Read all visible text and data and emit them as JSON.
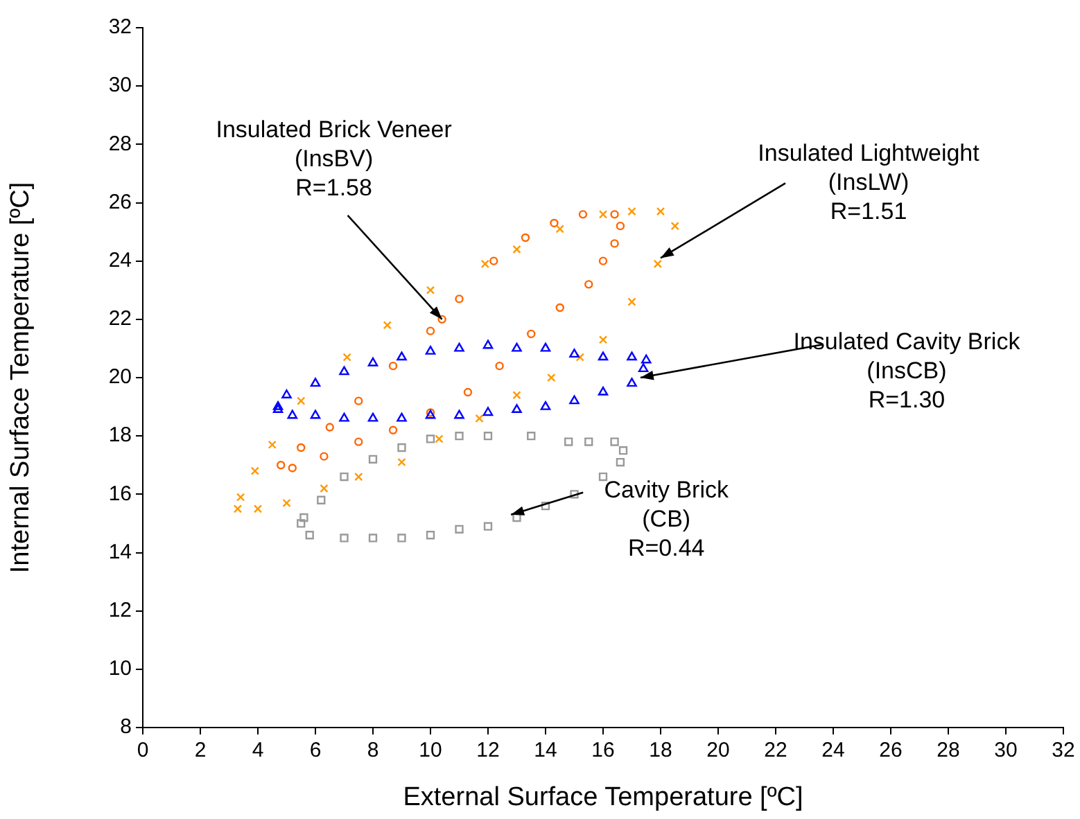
{
  "chart_data": {
    "type": "scatter",
    "xlabel": "External Surface Temperature [ºC]",
    "ylabel": "Internal Surface Temperature [ºC]",
    "xlim": [
      0,
      32
    ],
    "xticks": [
      0,
      2,
      4,
      6,
      8,
      10,
      12,
      14,
      16,
      18,
      20,
      22,
      24,
      26,
      28,
      30,
      32
    ],
    "ylim": [
      8,
      32
    ],
    "yticks": [
      8,
      10,
      12,
      14,
      16,
      18,
      20,
      22,
      24,
      26,
      28,
      30,
      32
    ],
    "grid": false,
    "legend": false,
    "series": [
      {
        "color": "#999999",
        "marker": "square",
        "x": [
          5.5,
          5.8,
          7,
          8,
          9,
          10,
          11,
          12,
          13,
          14,
          15,
          16,
          16.6,
          16.7,
          16.4,
          15.5,
          14.8,
          13.5,
          12,
          11,
          10,
          9,
          8,
          7,
          6.2,
          5.6
        ],
        "values": [
          15.0,
          14.6,
          14.5,
          14.5,
          14.5,
          14.6,
          14.8,
          14.9,
          15.2,
          15.6,
          16.0,
          16.6,
          17.1,
          17.5,
          17.8,
          17.8,
          17.8,
          18.0,
          18.0,
          18.0,
          17.9,
          17.6,
          17.2,
          16.6,
          15.8,
          15.2
        ]
      },
      {
        "color": "#0000ff",
        "marker": "triangle",
        "x": [
          4.7,
          5.2,
          6,
          7,
          8,
          9,
          10,
          11,
          12,
          13,
          14,
          15,
          16,
          17,
          17.4,
          17.5,
          17,
          16,
          15,
          14,
          13,
          12,
          11,
          10,
          9,
          8,
          7,
          6,
          5,
          4.7
        ],
        "values": [
          18.9,
          18.7,
          18.7,
          18.6,
          18.6,
          18.6,
          18.7,
          18.7,
          18.8,
          18.9,
          19.0,
          19.2,
          19.5,
          19.8,
          20.3,
          20.6,
          20.7,
          20.7,
          20.8,
          21.0,
          21.0,
          21.1,
          21.0,
          20.9,
          20.7,
          20.5,
          20.2,
          19.8,
          19.4,
          19.0
        ]
      },
      {
        "color": "#ff6600",
        "marker": "circle",
        "x": [
          4.8,
          5.5,
          6.5,
          7.5,
          8.7,
          10,
          10.4,
          11,
          12.2,
          13.3,
          14.3,
          15.3,
          16.4,
          16.6,
          16.4,
          16,
          15.5,
          14.5,
          13.5,
          12.4,
          11.3,
          10,
          8.7,
          7.5,
          6.3,
          5.2
        ],
        "values": [
          17.0,
          17.6,
          18.3,
          19.2,
          20.4,
          21.6,
          22.0,
          22.7,
          24.0,
          24.8,
          25.3,
          25.6,
          25.6,
          25.2,
          24.6,
          24.0,
          23.2,
          22.4,
          21.5,
          20.4,
          19.5,
          18.8,
          18.2,
          17.8,
          17.3,
          16.9
        ]
      },
      {
        "color": "#ff9900",
        "marker": "cross",
        "x": [
          3.3,
          4,
          5,
          6.3,
          7.5,
          9,
          10.3,
          11.7,
          13,
          14.2,
          15.2,
          16,
          17,
          17.9,
          18.5,
          18,
          17,
          16,
          14.5,
          13,
          11.9,
          10,
          8.5,
          7.1,
          5.5,
          4.5,
          3.9,
          3.4
        ],
        "values": [
          15.5,
          15.5,
          15.7,
          16.2,
          16.6,
          17.1,
          17.9,
          18.6,
          19.4,
          20.0,
          20.7,
          21.3,
          22.6,
          23.9,
          25.2,
          25.7,
          25.7,
          25.6,
          25.1,
          24.4,
          23.9,
          23.0,
          21.8,
          20.7,
          19.2,
          17.7,
          16.8,
          15.9
        ]
      }
    ],
    "annotations": [
      {
        "text": "Insulated Brick Veneer\n(InsBV)\nR=1.58",
        "x": 10.4,
        "y": 22.0
      },
      {
        "text": "Insulated Lightweight\n(InsLW)\nR=1.51",
        "x": 18.0,
        "y": 24.1
      },
      {
        "text": "Insulated Cavity Brick\n(InsCB)\nR=1.30",
        "x": 17.3,
        "y": 20.0
      },
      {
        "text": "Cavity Brick\n(CB)\nR=0.44",
        "x": 12.8,
        "y": 15.3
      }
    ]
  }
}
